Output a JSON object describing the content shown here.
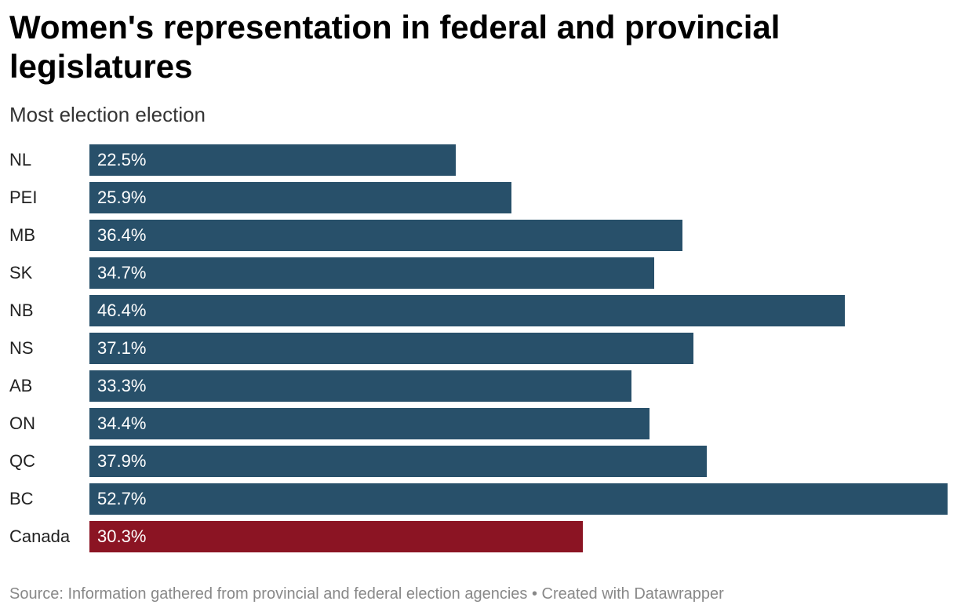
{
  "chart_data": {
    "type": "bar",
    "orientation": "horizontal",
    "title": "Women's representation in federal and provincial legislatures",
    "subtitle": "Most election election",
    "categories": [
      "NL",
      "PEI",
      "MB",
      "SK",
      "NB",
      "NS",
      "AB",
      "ON",
      "QC",
      "BC",
      "Canada"
    ],
    "values": [
      22.5,
      25.9,
      36.4,
      34.7,
      46.4,
      37.1,
      33.3,
      34.4,
      37.9,
      52.7,
      30.3
    ],
    "value_labels": [
      "22.5%",
      "25.9%",
      "36.4%",
      "34.7%",
      "46.4%",
      "37.1%",
      "33.3%",
      "34.4%",
      "37.9%",
      "52.7%",
      "30.3%"
    ],
    "xlim": [
      0,
      52.7
    ],
    "grid": false,
    "colors": {
      "default": "#28506a",
      "highlight": "#8b1423"
    },
    "highlight_category": "Canada"
  },
  "footer": {
    "text": "Source: Information gathered from provincial and federal election agencies • Created with Datawrapper"
  }
}
